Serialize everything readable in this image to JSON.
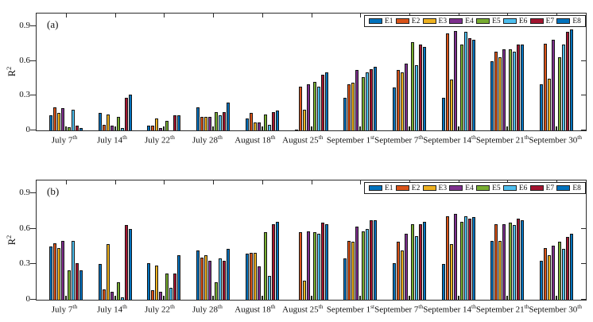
{
  "figure": {
    "ylabel": {
      "base": "R",
      "sup": "2"
    },
    "yticks": {
      "values": [
        0,
        0.3,
        0.6,
        0.9
      ],
      "labels": [
        "0",
        "0.3",
        "0.6",
        "0.9"
      ]
    }
  },
  "chart_data": [
    {
      "type": "bar",
      "panel_label": "(a)",
      "title": "",
      "xlabel": "",
      "ylabel": "R^2",
      "ylim": [
        0,
        1.0
      ],
      "yticks": [
        0,
        0.3,
        0.6,
        0.9
      ],
      "grid": false,
      "legend_position": "top-right",
      "notch_between_series": [
        "E4",
        "E5"
      ],
      "categories": [
        {
          "base": "July 7",
          "sup": "th"
        },
        {
          "base": "July 14",
          "sup": "th"
        },
        {
          "base": "July 22",
          "sup": "th"
        },
        {
          "base": "July 28",
          "sup": "th"
        },
        {
          "base": "August 18",
          "sup": "th"
        },
        {
          "base": "August 25",
          "sup": "th"
        },
        {
          "base": "September 1",
          "sup": "st"
        },
        {
          "base": "September 7",
          "sup": "th"
        },
        {
          "base": "September 14",
          "sup": "th"
        },
        {
          "base": "September 21",
          "sup": "th"
        },
        {
          "base": "September 30",
          "sup": "th"
        }
      ],
      "series": [
        {
          "name": "E1",
          "color": "#0072BD",
          "values": [
            0.13,
            0.15,
            0.04,
            0.2,
            0.1,
            0.01,
            0.28,
            0.37,
            0.28,
            0.6,
            0.4
          ]
        },
        {
          "name": "E2",
          "color": "#D95319",
          "values": [
            0.2,
            0.05,
            0.04,
            0.12,
            0.15,
            0.38,
            0.4,
            0.52,
            0.84,
            0.68,
            0.75
          ]
        },
        {
          "name": "E3",
          "color": "#EDB120",
          "values": [
            0.15,
            0.14,
            0.1,
            0.12,
            0.07,
            0.18,
            0.41,
            0.5,
            0.44,
            0.63,
            0.45
          ]
        },
        {
          "name": "E4",
          "color": "#7E2F8E",
          "values": [
            0.19,
            0.04,
            0.02,
            0.12,
            0.07,
            0.4,
            0.52,
            0.58,
            0.86,
            0.7,
            0.78
          ]
        },
        {
          "name": "E5",
          "color": "#77AC30",
          "values": [
            0.03,
            0.12,
            0.08,
            0.16,
            0.14,
            0.42,
            0.46,
            0.76,
            0.74,
            0.7,
            0.63
          ]
        },
        {
          "name": "E6",
          "color": "#4DBEEE",
          "values": [
            0.18,
            0.02,
            0.0,
            0.13,
            0.05,
            0.38,
            0.5,
            0.56,
            0.85,
            0.68,
            0.74
          ]
        },
        {
          "name": "E7",
          "color": "#A2142F",
          "values": [
            0.04,
            0.28,
            0.13,
            0.16,
            0.16,
            0.48,
            0.53,
            0.74,
            0.8,
            0.74,
            0.85
          ]
        },
        {
          "name": "E8",
          "color": "#0072BD",
          "values": [
            0.02,
            0.31,
            0.13,
            0.24,
            0.17,
            0.5,
            0.55,
            0.72,
            0.78,
            0.74,
            0.87
          ]
        }
      ]
    },
    {
      "type": "bar",
      "panel_label": "(b)",
      "title": "",
      "xlabel": "",
      "ylabel": "R^2",
      "ylim": [
        0,
        1.0
      ],
      "yticks": [
        0,
        0.3,
        0.6,
        0.9
      ],
      "grid": false,
      "legend_position": "top-right",
      "notch_between_series": [
        "E4",
        "E5"
      ],
      "categories": [
        {
          "base": "July 7",
          "sup": "th"
        },
        {
          "base": "July 14",
          "sup": "th"
        },
        {
          "base": "July 22",
          "sup": "th"
        },
        {
          "base": "July 28",
          "sup": "th"
        },
        {
          "base": "August 18",
          "sup": "th"
        },
        {
          "base": "August 25",
          "sup": "th"
        },
        {
          "base": "September 1",
          "sup": "st"
        },
        {
          "base": "September 7",
          "sup": "th"
        },
        {
          "base": "September 14",
          "sup": "th"
        },
        {
          "base": "September 21",
          "sup": "th"
        },
        {
          "base": "September 30",
          "sup": "th"
        }
      ],
      "series": [
        {
          "name": "E1",
          "color": "#0072BD",
          "values": [
            0.45,
            0.3,
            0.31,
            0.42,
            0.39,
            0.0,
            0.35,
            0.31,
            0.3,
            0.5,
            0.33
          ]
        },
        {
          "name": "E2",
          "color": "#D95319",
          "values": [
            0.48,
            0.09,
            0.08,
            0.36,
            0.4,
            0.57,
            0.5,
            0.49,
            0.71,
            0.64,
            0.44
          ]
        },
        {
          "name": "E3",
          "color": "#EDB120",
          "values": [
            0.44,
            0.47,
            0.29,
            0.38,
            0.4,
            0.16,
            0.49,
            0.42,
            0.47,
            0.5,
            0.38
          ]
        },
        {
          "name": "E4",
          "color": "#7E2F8E",
          "values": [
            0.5,
            0.07,
            0.07,
            0.33,
            0.28,
            0.58,
            0.62,
            0.56,
            0.73,
            0.64,
            0.46
          ]
        },
        {
          "name": "E5",
          "color": "#77AC30",
          "values": [
            0.25,
            0.15,
            0.22,
            0.15,
            0.57,
            0.57,
            0.58,
            0.64,
            0.66,
            0.65,
            0.49
          ]
        },
        {
          "name": "E6",
          "color": "#4DBEEE",
          "values": [
            0.5,
            0.02,
            0.1,
            0.35,
            0.2,
            0.56,
            0.6,
            0.54,
            0.71,
            0.63,
            0.43
          ]
        },
        {
          "name": "E7",
          "color": "#A2142F",
          "values": [
            0.31,
            0.63,
            0.22,
            0.33,
            0.64,
            0.65,
            0.67,
            0.64,
            0.69,
            0.69,
            0.53
          ]
        },
        {
          "name": "E8",
          "color": "#0072BD",
          "values": [
            0.25,
            0.6,
            0.38,
            0.43,
            0.66,
            0.64,
            0.67,
            0.66,
            0.7,
            0.67,
            0.56
          ]
        }
      ]
    }
  ]
}
